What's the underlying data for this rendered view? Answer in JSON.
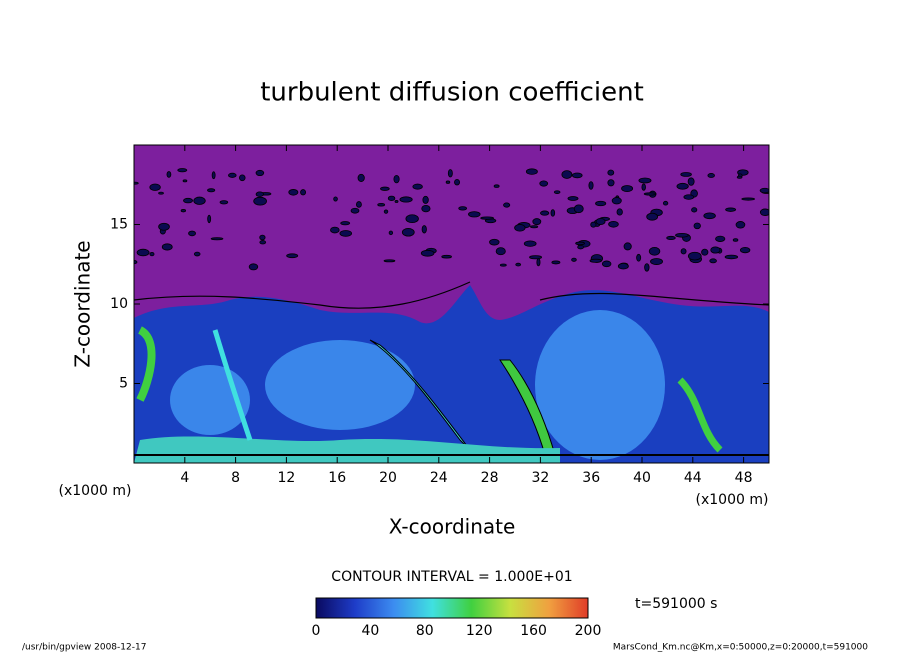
{
  "chart_data": {
    "type": "contour",
    "title": "turbulent diffusion coefficient",
    "xlabel": "X-coordinate",
    "ylabel": "Z-coordinate",
    "xunit": "(x1000 m)",
    "yunit": "(x1000 m)",
    "xlim": [
      0,
      50
    ],
    "xticks": [
      4,
      8,
      12,
      16,
      20,
      24,
      28,
      32,
      36,
      40,
      44,
      48
    ],
    "ylim": [
      0,
      20
    ],
    "yticks": [
      5,
      10,
      15
    ],
    "contour_interval": "CONTOUR INTERVAL = 1.000E+01",
    "time_label": "t=591000 s",
    "colorbar": {
      "lim": [
        0,
        200
      ],
      "ticks": [
        0,
        40,
        80,
        120,
        160,
        200
      ],
      "colors": [
        "#0a0a60",
        "#1e3cc8",
        "#3c8cf0",
        "#40e0e0",
        "#40d040",
        "#c8e040",
        "#f0a040",
        "#e03c28"
      ]
    },
    "footer_left": "/usr/bin/gpview   2008-12-17",
    "footer_right": "MarsCond_Km.nc@Km,x=0:50000,z=0:20000,t=591000"
  }
}
